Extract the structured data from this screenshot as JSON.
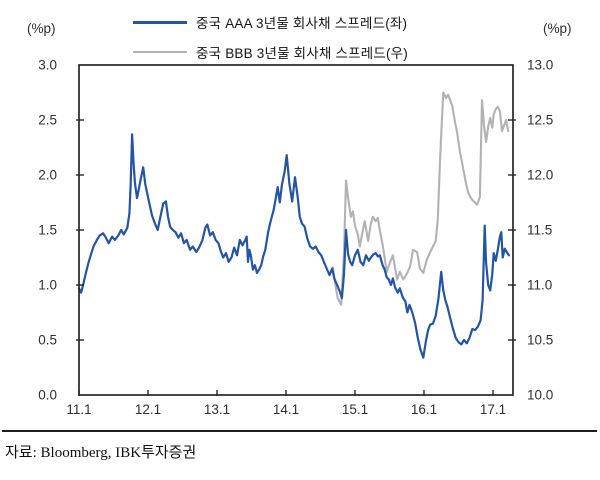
{
  "legend": [
    {
      "label": "중국 AAA 3년물 회사채 스프레드(좌)",
      "color": "#2554a3"
    },
    {
      "label": "중국 BBB 3년물 회사채 스프레드(우)",
      "color": "#b2b2b2"
    }
  ],
  "footer": {
    "source": "자료: Bloomberg, IBK투자증권"
  },
  "chart_data": {
    "type": "line",
    "title": "",
    "grid": false,
    "legend_position": "top",
    "axis_color": "#262626",
    "tick_label_color": "#303030",
    "x_axis": {
      "range": [
        11.0,
        17.29
      ],
      "ticks": [
        11,
        12,
        13,
        14,
        15,
        16,
        17
      ],
      "tick_labels": [
        "11.1",
        "12.1",
        "13.1",
        "14.1",
        "15.1",
        "16.1",
        "17.1"
      ]
    },
    "left_axis": {
      "unit": "(%p)",
      "range": [
        0.0,
        3.0
      ],
      "ticks": [
        0.0,
        0.5,
        1.0,
        1.5,
        2.0,
        2.5,
        3.0
      ],
      "tick_labels": [
        "0.0",
        "0.5",
        "1.0",
        "1.5",
        "2.0",
        "2.5",
        "3.0"
      ]
    },
    "right_axis": {
      "unit": "(%p)",
      "range": [
        10.0,
        13.0
      ],
      "ticks": [
        10.0,
        10.5,
        11.0,
        11.5,
        12.0,
        12.5,
        13.0
      ],
      "tick_labels": [
        "10.0",
        "10.5",
        "11.0",
        "11.5",
        "12.0",
        "12.5",
        "13.0"
      ]
    },
    "series": [
      {
        "name": "중국 BBB 3년물 회사채 스프레드(우)",
        "axis": "right",
        "color": "#b2b2b2",
        "width": 2.1,
        "points": [
          [
            14.68,
            11.16
          ],
          [
            14.71,
            11.02
          ],
          [
            14.75,
            10.88
          ],
          [
            14.8,
            10.82
          ],
          [
            14.84,
            11.3
          ],
          [
            14.87,
            11.95
          ],
          [
            14.9,
            11.79
          ],
          [
            14.94,
            11.62
          ],
          [
            14.97,
            11.67
          ],
          [
            15.0,
            11.54
          ],
          [
            15.04,
            11.46
          ],
          [
            15.07,
            11.35
          ],
          [
            15.12,
            11.52
          ],
          [
            15.14,
            11.58
          ],
          [
            15.19,
            11.4
          ],
          [
            15.23,
            11.56
          ],
          [
            15.26,
            11.62
          ],
          [
            15.3,
            11.58
          ],
          [
            15.33,
            11.61
          ],
          [
            15.36,
            11.5
          ],
          [
            15.41,
            11.33
          ],
          [
            15.46,
            11.12
          ],
          [
            15.51,
            11.21
          ],
          [
            15.55,
            11.27
          ],
          [
            15.61,
            11.05
          ],
          [
            15.65,
            11.12
          ],
          [
            15.7,
            11.05
          ],
          [
            15.75,
            11.1
          ],
          [
            15.8,
            11.17
          ],
          [
            15.84,
            11.32
          ],
          [
            15.9,
            11.3
          ],
          [
            15.94,
            11.15
          ],
          [
            15.99,
            11.11
          ],
          [
            16.04,
            11.23
          ],
          [
            16.09,
            11.3
          ],
          [
            16.13,
            11.35
          ],
          [
            16.17,
            11.4
          ],
          [
            16.2,
            11.6
          ],
          [
            16.23,
            12.1
          ],
          [
            16.26,
            12.5
          ],
          [
            16.28,
            12.75
          ],
          [
            16.32,
            12.7
          ],
          [
            16.35,
            12.73
          ],
          [
            16.38,
            12.68
          ],
          [
            16.41,
            12.63
          ],
          [
            16.45,
            12.48
          ],
          [
            16.48,
            12.39
          ],
          [
            16.52,
            12.21
          ],
          [
            16.55,
            12.12
          ],
          [
            16.58,
            12.02
          ],
          [
            16.61,
            11.92
          ],
          [
            16.64,
            11.84
          ],
          [
            16.68,
            11.79
          ],
          [
            16.72,
            11.76
          ],
          [
            16.77,
            11.73
          ],
          [
            16.81,
            11.8
          ],
          [
            16.84,
            12.68
          ],
          [
            16.87,
            12.45
          ],
          [
            16.9,
            12.3
          ],
          [
            16.93,
            12.44
          ],
          [
            16.96,
            12.52
          ],
          [
            16.99,
            12.43
          ],
          [
            17.01,
            12.55
          ],
          [
            17.04,
            12.6
          ],
          [
            17.07,
            12.62
          ],
          [
            17.1,
            12.58
          ],
          [
            17.13,
            12.4
          ],
          [
            17.16,
            12.45
          ],
          [
            17.19,
            12.5
          ],
          [
            17.22,
            12.4
          ]
        ]
      },
      {
        "name": "중국 AAA 3년물 회사채 스프레드(좌)",
        "axis": "left",
        "color": "#2554a3",
        "width": 2.2,
        "points": [
          [
            11.0,
            0.97
          ],
          [
            11.03,
            0.93
          ],
          [
            11.06,
            1.0
          ],
          [
            11.1,
            1.11
          ],
          [
            11.14,
            1.21
          ],
          [
            11.17,
            1.27
          ],
          [
            11.21,
            1.35
          ],
          [
            11.26,
            1.41
          ],
          [
            11.3,
            1.45
          ],
          [
            11.35,
            1.47
          ],
          [
            11.39,
            1.43
          ],
          [
            11.43,
            1.38
          ],
          [
            11.48,
            1.44
          ],
          [
            11.52,
            1.41
          ],
          [
            11.57,
            1.45
          ],
          [
            11.61,
            1.5
          ],
          [
            11.65,
            1.46
          ],
          [
            11.7,
            1.52
          ],
          [
            11.73,
            1.65
          ],
          [
            11.75,
            1.92
          ],
          [
            11.77,
            2.37
          ],
          [
            11.79,
            2.12
          ],
          [
            11.81,
            1.93
          ],
          [
            11.84,
            1.79
          ],
          [
            11.87,
            1.88
          ],
          [
            11.9,
            1.98
          ],
          [
            11.93,
            2.07
          ],
          [
            11.96,
            1.92
          ],
          [
            12.0,
            1.8
          ],
          [
            12.03,
            1.71
          ],
          [
            12.06,
            1.63
          ],
          [
            12.1,
            1.56
          ],
          [
            12.14,
            1.5
          ],
          [
            12.18,
            1.62
          ],
          [
            12.22,
            1.74
          ],
          [
            12.26,
            1.76
          ],
          [
            12.29,
            1.62
          ],
          [
            12.32,
            1.53
          ],
          [
            12.36,
            1.5
          ],
          [
            12.4,
            1.48
          ],
          [
            12.44,
            1.43
          ],
          [
            12.48,
            1.47
          ],
          [
            12.52,
            1.38
          ],
          [
            12.56,
            1.41
          ],
          [
            12.61,
            1.32
          ],
          [
            12.65,
            1.35
          ],
          [
            12.7,
            1.3
          ],
          [
            12.74,
            1.34
          ],
          [
            12.79,
            1.41
          ],
          [
            12.83,
            1.52
          ],
          [
            12.86,
            1.55
          ],
          [
            12.9,
            1.45
          ],
          [
            12.94,
            1.48
          ],
          [
            12.98,
            1.41
          ],
          [
            13.02,
            1.38
          ],
          [
            13.06,
            1.3
          ],
          [
            13.09,
            1.25
          ],
          [
            13.13,
            1.29
          ],
          [
            13.17,
            1.21
          ],
          [
            13.21,
            1.25
          ],
          [
            13.25,
            1.34
          ],
          [
            13.29,
            1.27
          ],
          [
            13.33,
            1.41
          ],
          [
            13.37,
            1.36
          ],
          [
            13.41,
            1.41
          ],
          [
            13.43,
            1.44
          ],
          [
            13.45,
            1.21
          ],
          [
            13.47,
            1.32
          ],
          [
            13.49,
            1.27
          ],
          [
            13.52,
            1.14
          ],
          [
            13.55,
            1.18
          ],
          [
            13.58,
            1.11
          ],
          [
            13.61,
            1.14
          ],
          [
            13.64,
            1.18
          ],
          [
            13.67,
            1.26
          ],
          [
            13.7,
            1.32
          ],
          [
            13.72,
            1.4
          ],
          [
            13.74,
            1.48
          ],
          [
            13.77,
            1.56
          ],
          [
            13.79,
            1.61
          ],
          [
            13.82,
            1.68
          ],
          [
            13.85,
            1.78
          ],
          [
            13.88,
            1.89
          ],
          [
            13.91,
            1.75
          ],
          [
            13.94,
            1.91
          ],
          [
            13.98,
            2.03
          ],
          [
            14.01,
            2.18
          ],
          [
            14.05,
            1.92
          ],
          [
            14.09,
            1.76
          ],
          [
            14.13,
            1.98
          ],
          [
            14.17,
            1.8
          ],
          [
            14.2,
            1.62
          ],
          [
            14.23,
            1.56
          ],
          [
            14.27,
            1.53
          ],
          [
            14.31,
            1.42
          ],
          [
            14.35,
            1.35
          ],
          [
            14.39,
            1.33
          ],
          [
            14.43,
            1.35
          ],
          [
            14.47,
            1.3
          ],
          [
            14.51,
            1.27
          ],
          [
            14.55,
            1.21
          ],
          [
            14.59,
            1.15
          ],
          [
            14.63,
            1.09
          ],
          [
            14.67,
            1.15
          ],
          [
            14.7,
            1.06
          ],
          [
            14.74,
            1.0
          ],
          [
            14.78,
            0.94
          ],
          [
            14.81,
            0.88
          ],
          [
            14.84,
            1.1
          ],
          [
            14.87,
            1.5
          ],
          [
            14.9,
            1.28
          ],
          [
            14.93,
            1.21
          ],
          [
            14.96,
            1.18
          ],
          [
            15.0,
            1.27
          ],
          [
            15.04,
            1.32
          ],
          [
            15.08,
            1.21
          ],
          [
            15.12,
            1.18
          ],
          [
            15.16,
            1.27
          ],
          [
            15.2,
            1.22
          ],
          [
            15.23,
            1.25
          ],
          [
            15.27,
            1.28
          ],
          [
            15.3,
            1.29
          ],
          [
            15.33,
            1.26
          ],
          [
            15.36,
            1.27
          ],
          [
            15.4,
            1.18
          ],
          [
            15.43,
            1.14
          ],
          [
            15.46,
            1.07
          ],
          [
            15.49,
            1.05
          ],
          [
            15.52,
            1.0
          ],
          [
            15.55,
            1.06
          ],
          [
            15.58,
            0.98
          ],
          [
            15.62,
            0.93
          ],
          [
            15.65,
            0.97
          ],
          [
            15.69,
            0.89
          ],
          [
            15.73,
            0.85
          ],
          [
            15.76,
            0.75
          ],
          [
            15.79,
            0.82
          ],
          [
            15.83,
            0.75
          ],
          [
            15.87,
            0.66
          ],
          [
            15.91,
            0.52
          ],
          [
            15.95,
            0.41
          ],
          [
            15.99,
            0.34
          ],
          [
            16.03,
            0.5
          ],
          [
            16.06,
            0.59
          ],
          [
            16.09,
            0.64
          ],
          [
            16.13,
            0.65
          ],
          [
            16.17,
            0.72
          ],
          [
            16.21,
            0.88
          ],
          [
            16.25,
            1.12
          ],
          [
            16.28,
            0.95
          ],
          [
            16.31,
            0.86
          ],
          [
            16.34,
            0.8
          ],
          [
            16.38,
            0.7
          ],
          [
            16.42,
            0.6
          ],
          [
            16.46,
            0.52
          ],
          [
            16.5,
            0.48
          ],
          [
            16.54,
            0.46
          ],
          [
            16.58,
            0.5
          ],
          [
            16.62,
            0.47
          ],
          [
            16.66,
            0.52
          ],
          [
            16.7,
            0.6
          ],
          [
            16.74,
            0.59
          ],
          [
            16.78,
            0.62
          ],
          [
            16.82,
            0.68
          ],
          [
            16.85,
            0.86
          ],
          [
            16.88,
            1.54
          ],
          [
            16.9,
            1.2
          ],
          [
            16.93,
            1.0
          ],
          [
            16.96,
            0.95
          ],
          [
            16.99,
            1.1
          ],
          [
            17.01,
            1.29
          ],
          [
            17.04,
            1.22
          ],
          [
            17.07,
            1.32
          ],
          [
            17.1,
            1.44
          ],
          [
            17.12,
            1.48
          ],
          [
            17.14,
            1.25
          ],
          [
            17.17,
            1.33
          ],
          [
            17.2,
            1.3
          ],
          [
            17.23,
            1.27
          ]
        ]
      }
    ]
  }
}
